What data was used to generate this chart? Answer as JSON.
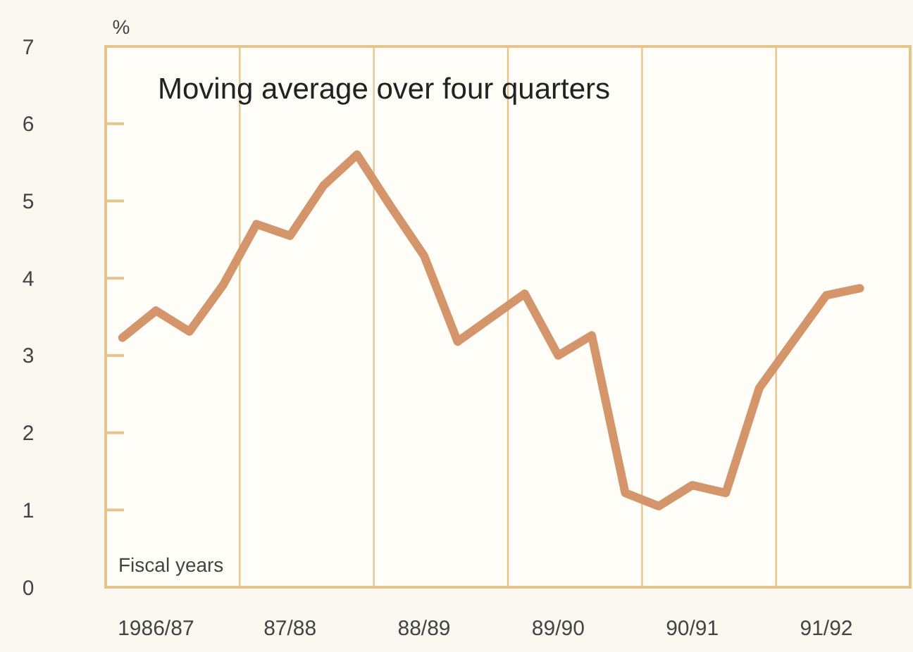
{
  "chart_data": {
    "type": "line",
    "title": "Moving average over four quarters",
    "xlabel": "Fiscal years",
    "ylabel": "%",
    "categories": [
      null,
      "1986/87",
      null,
      null,
      null,
      "87/88",
      null,
      null,
      null,
      "88/89",
      null,
      null,
      null,
      "89/90",
      null,
      null,
      null,
      "90/91",
      null,
      null,
      null,
      "91/92",
      null,
      null
    ],
    "series": [
      {
        "color": "#d4956a",
        "values": [
          3.23,
          3.58,
          3.31,
          3.91,
          4.7,
          4.55,
          5.2,
          5.6,
          4.93,
          4.29,
          3.18,
          3.49,
          3.8,
          3.0,
          3.26,
          1.22,
          1.05,
          1.32,
          1.22,
          2.58,
          3.18,
          3.78,
          3.87,
          null
        ]
      }
    ],
    "ylim": [
      0,
      7
    ],
    "yticks": [
      0,
      1,
      2,
      3,
      4,
      5,
      6,
      7
    ],
    "grid": "x",
    "marker": "none",
    "line_style": "solid"
  }
}
